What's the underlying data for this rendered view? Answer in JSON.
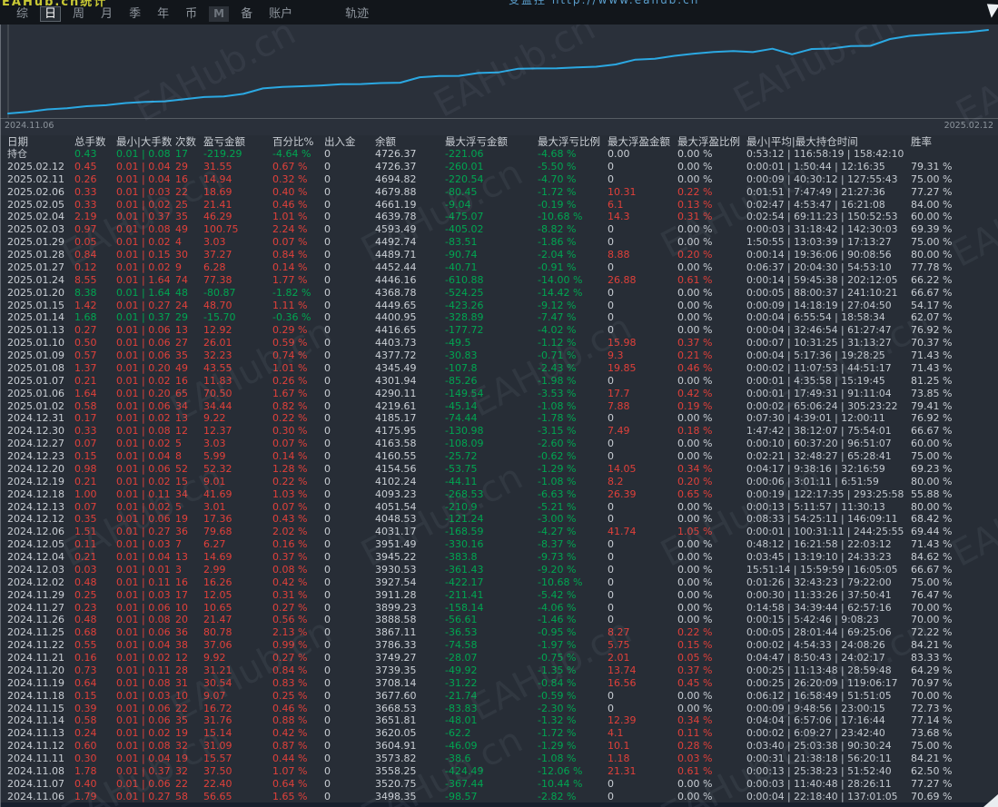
{
  "page": {
    "top_left_clipped": "EAHub.cn统计",
    "top_right_clipped": "受监控 http://www.eahub.cn",
    "watermark": "EAHub.cn"
  },
  "menu": {
    "items": [
      "综",
      "日",
      "周",
      "月",
      "季",
      "年",
      "币",
      "M",
      "备",
      "账户"
    ],
    "active": "日",
    "far_item": "轨迹"
  },
  "chart": {
    "start_label": "2024.11.06",
    "end_label": "2025.02.12",
    "line_color": "#2ba8e2",
    "background": "#2a303a"
  },
  "chart_data": {
    "type": "line",
    "title": "",
    "xlabel": "",
    "ylabel": "",
    "x_start": "2024.11.06",
    "x_end": "2025.02.12",
    "legend": [],
    "grid": false,
    "ylim": [
      3470,
      4750
    ],
    "series": [
      {
        "name": "余额",
        "values": [
          3498.35,
          3520.75,
          3558.25,
          3573.82,
          3604.91,
          3620.05,
          3651.81,
          3668.53,
          3677.6,
          3708.14,
          3739.35,
          3749.27,
          3786.33,
          3867.11,
          3888.58,
          3899.23,
          3911.28,
          3927.54,
          3930.53,
          3945.22,
          3951.49,
          4031.17,
          4048.53,
          4051.54,
          4093.23,
          4102.24,
          4154.56,
          4160.55,
          4163.58,
          4175.95,
          4185.17,
          4219.61,
          4290.11,
          4301.94,
          4345.49,
          4377.72,
          4403.73,
          4416.65,
          4400.95,
          4449.65,
          4368.78,
          4446.16,
          4452.44,
          4489.71,
          4492.74,
          4593.49,
          4639.78,
          4661.19,
          4679.88,
          4694.82,
          4726.37
        ]
      }
    ]
  },
  "table": {
    "headers": [
      "日期",
      "总手数",
      "最小|大手数",
      "次数",
      "盈亏金额",
      "百分比%",
      "出入金",
      "余额",
      "最大浮亏金额",
      "最大浮亏比例",
      "最大浮盈金额",
      "最大浮盈比例",
      "最小|平均|最大持仓时间",
      "胜率"
    ],
    "rows": [
      [
        "持仓",
        "0.43",
        "0.01 | 0.08",
        "17",
        "-219.29",
        "-4.64 %",
        "0",
        "4726.37",
        "-221.06",
        "-4.68 %",
        "0.00",
        "0.00 %",
        "0:53:12 | 116:58:19 | 158:42:10",
        ""
      ],
      [
        "2025.02.12",
        "0.45",
        "0.01 | 0.04",
        "29",
        "31.55",
        "0.67 %",
        "0",
        "4726.37",
        "-260.01",
        "-5.50 %",
        "0",
        "0.00 %",
        "0:00:01 | 1:50:44 | 12:16:35",
        "79.31 %"
      ],
      [
        "2025.02.11",
        "0.26",
        "0.01 | 0.04",
        "16",
        "14.94",
        "0.32 %",
        "0",
        "4694.82",
        "-220.54",
        "-4.70 %",
        "0",
        "0.00 %",
        "0:00:09 | 40:30:12 | 127:55:43",
        "75.00 %"
      ],
      [
        "2025.02.06",
        "0.33",
        "0.01 | 0.03",
        "22",
        "18.69",
        "0.40 %",
        "0",
        "4679.88",
        "-80.45",
        "-1.72 %",
        "10.31",
        "0.22 %",
        "0:01:51 | 7:47:49 | 21:27:36",
        "77.27 %"
      ],
      [
        "2025.02.05",
        "0.33",
        "0.01 | 0.02",
        "25",
        "21.41",
        "0.46 %",
        "0",
        "4661.19",
        "-9.04",
        "-0.19 %",
        "6.1",
        "0.13 %",
        "0:02:47 | 4:53:47 | 16:21:08",
        "84.00 %"
      ],
      [
        "2025.02.04",
        "2.19",
        "0.01 | 0.37",
        "35",
        "46.29",
        "1.01 %",
        "0",
        "4639.78",
        "-475.07",
        "-10.68 %",
        "14.3",
        "0.31 %",
        "0:02:54 | 69:11:23 | 150:52:53",
        "60.00 %"
      ],
      [
        "2025.02.03",
        "0.97",
        "0.01 | 0.08",
        "49",
        "100.75",
        "2.24 %",
        "0",
        "4593.49",
        "-405.02",
        "-8.82 %",
        "0",
        "0.00 %",
        "0:00:03 | 31:18:42 | 142:30:03",
        "69.39 %"
      ],
      [
        "2025.01.29",
        "0.05",
        "0.01 | 0.02",
        "4",
        "3.03",
        "0.07 %",
        "0",
        "4492.74",
        "-83.51",
        "-1.86 %",
        "0",
        "0.00 %",
        "1:50:55 | 13:03:39 | 17:13:27",
        "75.00 %"
      ],
      [
        "2025.01.28",
        "0.84",
        "0.01 | 0.15",
        "30",
        "37.27",
        "0.84 %",
        "0",
        "4489.71",
        "-90.74",
        "-2.04 %",
        "8.88",
        "0.20 %",
        "0:00:14 | 19:36:06 | 90:08:56",
        "80.00 %"
      ],
      [
        "2025.01.27",
        "0.12",
        "0.01 | 0.02",
        "9",
        "6.28",
        "0.14 %",
        "0",
        "4452.44",
        "-40.71",
        "-0.91 %",
        "0",
        "0.00 %",
        "0:06:37 | 20:04:30 | 54:53:10",
        "77.78 %"
      ],
      [
        "2025.01.24",
        "8.55",
        "0.01 | 1.64",
        "74",
        "77.38",
        "1.77 %",
        "0",
        "4446.16",
        "-610.88",
        "-14.00 %",
        "26.88",
        "0.61 %",
        "0:00:14 | 59:45:38 | 202:12:05",
        "66.22 %"
      ],
      [
        "2025.01.20",
        "8.38",
        "0.01 | 1.64",
        "48",
        "-80.87",
        "-1.82 %",
        "0",
        "4368.78",
        "-524.25",
        "-14.42 %",
        "0",
        "0.00 %",
        "0:00:05 | 88:00:37 | 241:10:21",
        "66.67 %"
      ],
      [
        "2025.01.15",
        "1.42",
        "0.01 | 0.27",
        "24",
        "48.70",
        "1.11 %",
        "0",
        "4449.65",
        "-423.26",
        "-9.12 %",
        "0",
        "0.00 %",
        "0:00:09 | 14:18:19 | 27:04:50",
        "54.17 %"
      ],
      [
        "2025.01.14",
        "1.68",
        "0.01 | 0.37",
        "29",
        "-15.70",
        "-0.36 %",
        "0",
        "4400.95",
        "-328.89",
        "-7.47 %",
        "0",
        "0.00 %",
        "0:00:04 | 6:55:54 | 18:58:34",
        "62.07 %"
      ],
      [
        "2025.01.13",
        "0.27",
        "0.01 | 0.06",
        "13",
        "12.92",
        "0.29 %",
        "0",
        "4416.65",
        "-177.72",
        "-4.02 %",
        "0",
        "0.00 %",
        "0:00:04 | 32:46:54 | 61:27:47",
        "76.92 %"
      ],
      [
        "2025.01.10",
        "0.50",
        "0.01 | 0.06",
        "27",
        "26.01",
        "0.59 %",
        "0",
        "4403.73",
        "-49.5",
        "-1.12 %",
        "15.98",
        "0.37 %",
        "0:00:07 | 10:31:25 | 31:13:27",
        "70.37 %"
      ],
      [
        "2025.01.09",
        "0.57",
        "0.01 | 0.06",
        "35",
        "32.23",
        "0.74 %",
        "0",
        "4377.72",
        "-30.83",
        "-0.71 %",
        "9.3",
        "0.21 %",
        "0:00:04 | 5:17:36 | 19:28:25",
        "71.43 %"
      ],
      [
        "2025.01.08",
        "1.37",
        "0.01 | 0.20",
        "49",
        "43.55",
        "1.01 %",
        "0",
        "4345.49",
        "-107.8",
        "-2.43 %",
        "19.85",
        "0.46 %",
        "0:00:02 | 11:07:53 | 44:51:17",
        "71.43 %"
      ],
      [
        "2025.01.07",
        "0.21",
        "0.01 | 0.02",
        "16",
        "11.83",
        "0.26 %",
        "0",
        "4301.94",
        "-85.26",
        "-1.98 %",
        "0",
        "0.00 %",
        "0:00:01 | 4:35:58 | 15:19:45",
        "81.25 %"
      ],
      [
        "2025.01.06",
        "1.64",
        "0.01 | 0.20",
        "65",
        "70.50",
        "1.67 %",
        "0",
        "4290.11",
        "-149.54",
        "-3.53 %",
        "17.7",
        "0.42 %",
        "0:00:01 | 17:49:31 | 91:11:04",
        "73.85 %"
      ],
      [
        "2025.01.02",
        "0.58",
        "0.01 | 0.06",
        "34",
        "34.44",
        "0.82 %",
        "0",
        "4219.61",
        "-45.14",
        "-1.08 %",
        "7.88",
        "0.19 %",
        "0:00:02 | 65:06:24 | 305:23:22",
        "79.41 %"
      ],
      [
        "2024.12.31",
        "0.17",
        "0.01 | 0.02",
        "13",
        "9.22",
        "0.22 %",
        "0",
        "4185.17",
        "-74.44",
        "-1.78 %",
        "0",
        "0.00 %",
        "0:07:30 | 4:39:01 | 12:00:11",
        "76.92 %"
      ],
      [
        "2024.12.30",
        "0.33",
        "0.01 | 0.08",
        "12",
        "12.37",
        "0.30 %",
        "0",
        "4175.95",
        "-130.98",
        "-3.15 %",
        "7.49",
        "0.18 %",
        "1:47:42 | 38:12:07 | 75:54:01",
        "66.67 %"
      ],
      [
        "2024.12.27",
        "0.07",
        "0.01 | 0.02",
        "5",
        "3.03",
        "0.07 %",
        "0",
        "4163.58",
        "-108.09",
        "-2.60 %",
        "0",
        "0.00 %",
        "0:00:10 | 60:37:20 | 96:51:07",
        "60.00 %"
      ],
      [
        "2024.12.23",
        "0.15",
        "0.01 | 0.04",
        "8",
        "5.99",
        "0.14 %",
        "0",
        "4160.55",
        "-25.72",
        "-0.62 %",
        "0",
        "0.00 %",
        "0:02:21 | 32:48:27 | 65:28:41",
        "75.00 %"
      ],
      [
        "2024.12.20",
        "0.98",
        "0.01 | 0.06",
        "52",
        "52.32",
        "1.28 %",
        "0",
        "4154.56",
        "-53.75",
        "-1.29 %",
        "14.05",
        "0.34 %",
        "0:04:17 | 9:38:16 | 32:16:59",
        "69.23 %"
      ],
      [
        "2024.12.19",
        "0.21",
        "0.01 | 0.02",
        "15",
        "9.01",
        "0.22 %",
        "0",
        "4102.24",
        "-44.11",
        "-1.08 %",
        "8.2",
        "0.20 %",
        "0:00:06 | 3:01:11 | 6:51:59",
        "80.00 %"
      ],
      [
        "2024.12.18",
        "1.00",
        "0.01 | 0.11",
        "34",
        "41.69",
        "1.03 %",
        "0",
        "4093.23",
        "-268.53",
        "-6.63 %",
        "26.39",
        "0.65 %",
        "0:00:19 | 122:17:35 | 293:25:58",
        "55.88 %"
      ],
      [
        "2024.12.13",
        "0.07",
        "0.01 | 0.02",
        "5",
        "3.01",
        "0.07 %",
        "0",
        "4051.54",
        "-210.9",
        "-5.21 %",
        "0",
        "0.00 %",
        "0:00:13 | 5:11:57 | 11:30:13",
        "80.00 %"
      ],
      [
        "2024.12.12",
        "0.35",
        "0.01 | 0.06",
        "19",
        "17.36",
        "0.43 %",
        "0",
        "4048.53",
        "-121.24",
        "-3.00 %",
        "0",
        "0.00 %",
        "0:08:33 | 54:25:11 | 146:09:11",
        "68.42 %"
      ],
      [
        "2024.12.06",
        "1.51",
        "0.01 | 0.27",
        "36",
        "79.68",
        "2.02 %",
        "0",
        "4031.17",
        "-168.59",
        "-4.27 %",
        "41.74",
        "1.05 %",
        "0:00:01 | 100:31:11 | 244:25:55",
        "69.44 %"
      ],
      [
        "2024.12.05",
        "0.11",
        "0.01 | 0.03",
        "7",
        "6.27",
        "0.16 %",
        "0",
        "3951.49",
        "-330.16",
        "-8.37 %",
        "0",
        "0.00 %",
        "0:48:12 | 16:21:58 | 22:03:12",
        "71.43 %"
      ],
      [
        "2024.12.04",
        "0.21",
        "0.01 | 0.04",
        "13",
        "14.69",
        "0.37 %",
        "0",
        "3945.22",
        "-383.8",
        "-9.73 %",
        "0",
        "0.00 %",
        "0:03:45 | 13:19:10 | 24:33:23",
        "84.62 %"
      ],
      [
        "2024.12.03",
        "0.03",
        "0.01 | 0.01",
        "3",
        "2.99",
        "0.08 %",
        "0",
        "3930.53",
        "-361.43",
        "-9.20 %",
        "0",
        "0.00 %",
        "15:51:14 | 15:59:59 | 16:05:05",
        "66.67 %"
      ],
      [
        "2024.12.02",
        "0.48",
        "0.01 | 0.11",
        "16",
        "16.26",
        "0.42 %",
        "0",
        "3927.54",
        "-422.17",
        "-10.68 %",
        "0",
        "0.00 %",
        "0:01:26 | 32:43:23 | 79:22:00",
        "75.00 %"
      ],
      [
        "2024.11.29",
        "0.25",
        "0.01 | 0.03",
        "17",
        "12.05",
        "0.31 %",
        "0",
        "3911.28",
        "-211.41",
        "-5.42 %",
        "0",
        "0.00 %",
        "0:00:30 | 11:33:26 | 37:50:41",
        "76.47 %"
      ],
      [
        "2024.11.27",
        "0.23",
        "0.01 | 0.06",
        "10",
        "10.65",
        "0.27 %",
        "0",
        "3899.23",
        "-158.14",
        "-4.06 %",
        "0",
        "0.00 %",
        "0:14:58 | 34:39:44 | 62:57:16",
        "70.00 %"
      ],
      [
        "2024.11.26",
        "0.48",
        "0.01 | 0.08",
        "20",
        "21.47",
        "0.56 %",
        "0",
        "3888.58",
        "-56.61",
        "-1.46 %",
        "0",
        "0.00 %",
        "0:00:15 | 5:42:46 | 9:08:23",
        "70.00 %"
      ],
      [
        "2024.11.25",
        "0.68",
        "0.01 | 0.06",
        "36",
        "80.78",
        "2.13 %",
        "0",
        "3867.11",
        "-36.53",
        "-0.95 %",
        "8.27",
        "0.22 %",
        "0:00:05 | 28:01:44 | 69:25:06",
        "72.22 %"
      ],
      [
        "2024.11.22",
        "0.55",
        "0.01 | 0.04",
        "38",
        "37.06",
        "0.99 %",
        "0",
        "3786.33",
        "-74.58",
        "-1.97 %",
        "5.75",
        "0.15 %",
        "0:00:02 | 4:54:33 | 24:08:26",
        "84.21 %"
      ],
      [
        "2024.11.21",
        "0.16",
        "0.01 | 0.02",
        "12",
        "9.92",
        "0.27 %",
        "0",
        "3749.27",
        "-28.07",
        "-0.75 %",
        "2.01",
        "0.05 %",
        "0:04:47 | 8:50:43 | 24:02:17",
        "83.33 %"
      ],
      [
        "2024.11.20",
        "0.73",
        "0.01 | 0.11",
        "28",
        "31.21",
        "0.84 %",
        "0",
        "3739.35",
        "-49.92",
        "-1.35 %",
        "13.74",
        "0.37 %",
        "0:00:25 | 11:13:48 | 28:59:48",
        "64.29 %"
      ],
      [
        "2024.11.19",
        "0.64",
        "0.01 | 0.08",
        "31",
        "30.54",
        "0.83 %",
        "0",
        "3708.14",
        "-31.22",
        "-0.84 %",
        "16.56",
        "0.45 %",
        "0:00:25 | 26:20:09 | 119:06:17",
        "70.97 %"
      ],
      [
        "2024.11.18",
        "0.15",
        "0.01 | 0.03",
        "10",
        "9.07",
        "0.25 %",
        "0",
        "3677.60",
        "-21.74",
        "-0.59 %",
        "0",
        "0.00 %",
        "0:06:12 | 16:58:49 | 51:51:05",
        "70.00 %"
      ],
      [
        "2024.11.15",
        "0.39",
        "0.01 | 0.06",
        "22",
        "16.72",
        "0.46 %",
        "0",
        "3668.53",
        "-83.83",
        "-2.30 %",
        "0",
        "0.00 %",
        "0:00:09 | 9:48:56 | 23:00:15",
        "72.73 %"
      ],
      [
        "2024.11.14",
        "0.58",
        "0.01 | 0.06",
        "35",
        "31.76",
        "0.88 %",
        "0",
        "3651.81",
        "-48.01",
        "-1.32 %",
        "12.39",
        "0.34 %",
        "0:04:04 | 6:57:06 | 17:16:44",
        "77.14 %"
      ],
      [
        "2024.11.13",
        "0.24",
        "0.01 | 0.02",
        "19",
        "15.14",
        "0.42 %",
        "0",
        "3620.05",
        "-62.2",
        "-1.72 %",
        "4.1",
        "0.11 %",
        "0:00:02 | 6:09:27 | 23:42:40",
        "73.68 %"
      ],
      [
        "2024.11.12",
        "0.60",
        "0.01 | 0.08",
        "32",
        "31.09",
        "0.87 %",
        "0",
        "3604.91",
        "-46.09",
        "-1.29 %",
        "10.1",
        "0.28 %",
        "0:03:40 | 25:03:38 | 90:30:24",
        "75.00 %"
      ],
      [
        "2024.11.11",
        "0.30",
        "0.01 | 0.04",
        "19",
        "15.57",
        "0.44 %",
        "0",
        "3573.82",
        "-38.6",
        "-1.08 %",
        "1.18",
        "0.03 %",
        "0:00:31 | 21:38:18 | 56:20:11",
        "84.21 %"
      ],
      [
        "2024.11.08",
        "1.78",
        "0.01 | 0.37",
        "32",
        "37.50",
        "1.07 %",
        "0",
        "3558.25",
        "-424.49",
        "-12.06 %",
        "21.31",
        "0.61 %",
        "0:00:13 | 25:38:23 | 51:52:40",
        "62.50 %"
      ],
      [
        "2024.11.07",
        "0.40",
        "0.01 | 0.06",
        "22",
        "22.40",
        "0.64 %",
        "0",
        "3520.75",
        "-367.44",
        "-10.44 %",
        "0",
        "0.00 %",
        "0:00:03 | 11:40:48 | 28:26:11",
        "77.27 %"
      ],
      [
        "2024.11.06",
        "1.79",
        "0.01 | 0.27",
        "58",
        "56.65",
        "1.65 %",
        "0",
        "3498.35",
        "-98.57",
        "-2.82 %",
        "0",
        "0.00 %",
        "0:00:04 | 22:18:40 | 137:01:05",
        "70.69 %"
      ]
    ]
  }
}
